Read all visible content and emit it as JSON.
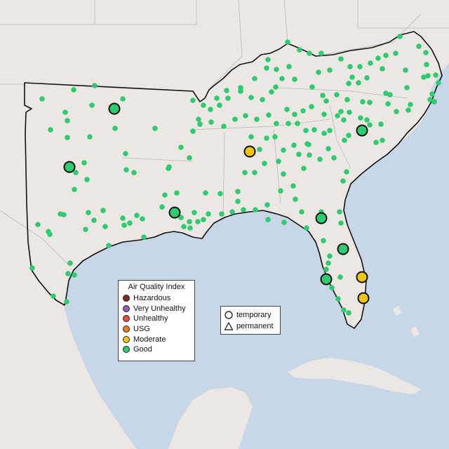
{
  "map": {
    "land_color": "#ece7e2",
    "water_color": "#c7d7e7",
    "border_color": "#111111",
    "state_line_color": "#bbbbbb"
  },
  "legend_aqi": {
    "title": "Air Quality Index",
    "items": [
      {
        "label": "Hazardous",
        "color": "#7e2c28"
      },
      {
        "label": "Very Unhealthy",
        "color": "#9b59b6"
      },
      {
        "label": "Unhealthy",
        "color": "#e74c3c"
      },
      {
        "label": "USG",
        "color": "#e67e22"
      },
      {
        "label": "Moderate",
        "color": "#f1c40f"
      },
      {
        "label": "Good",
        "color": "#2ecc71"
      }
    ]
  },
  "legend_type": {
    "items": [
      {
        "label": "temporary",
        "shape": "circle"
      },
      {
        "label": "permanent",
        "shape": "triangle"
      }
    ]
  },
  "monitors_large": [
    {
      "category": "Good"
    },
    {
      "category": "Good"
    },
    {
      "category": "Good"
    },
    {
      "category": "Moderate"
    },
    {
      "category": "Good"
    },
    {
      "category": "Good"
    },
    {
      "category": "Good"
    },
    {
      "category": "Good"
    },
    {
      "category": "Moderate"
    },
    {
      "category": "Moderate"
    }
  ]
}
